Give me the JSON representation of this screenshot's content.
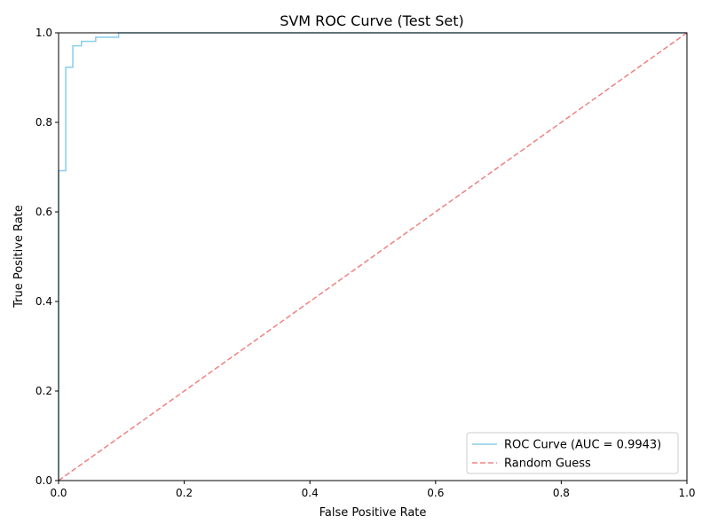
{
  "chart_data": {
    "type": "line",
    "title": "SVM ROC Curve (Test Set)",
    "xlabel": "False Positive Rate",
    "ylabel": "True Positive Rate",
    "xlim": [
      0,
      1
    ],
    "ylim": [
      0,
      1
    ],
    "x_ticks": [
      0.0,
      0.2,
      0.4,
      0.6,
      0.8,
      1.0
    ],
    "y_ticks": [
      0.0,
      0.2,
      0.4,
      0.6,
      0.8,
      1.0
    ],
    "x_tick_labels": [
      "0.0",
      "0.2",
      "0.4",
      "0.6",
      "0.8",
      "1.0"
    ],
    "y_tick_labels": [
      "0.0",
      "0.2",
      "0.4",
      "0.6",
      "0.8",
      "1.0"
    ],
    "grid": false,
    "legend_position": "lower-right",
    "series": [
      {
        "name": "ROC Curve (AUC = 0.9943)",
        "color": "#87ceeb",
        "style": "solid",
        "step": true,
        "x": [
          0.0,
          0.0,
          0.0114,
          0.0114,
          0.0227,
          0.0227,
          0.0364,
          0.0364,
          0.0591,
          0.0591,
          0.0955,
          0.0955,
          1.0
        ],
        "y": [
          0.0,
          0.692,
          0.692,
          0.923,
          0.923,
          0.971,
          0.971,
          0.981,
          0.981,
          0.99,
          0.99,
          1.0,
          1.0
        ]
      },
      {
        "name": "Random Guess",
        "color": "#f08080",
        "style": "dashed",
        "step": false,
        "x": [
          0.0,
          1.0
        ],
        "y": [
          0.0,
          1.0
        ]
      }
    ]
  }
}
